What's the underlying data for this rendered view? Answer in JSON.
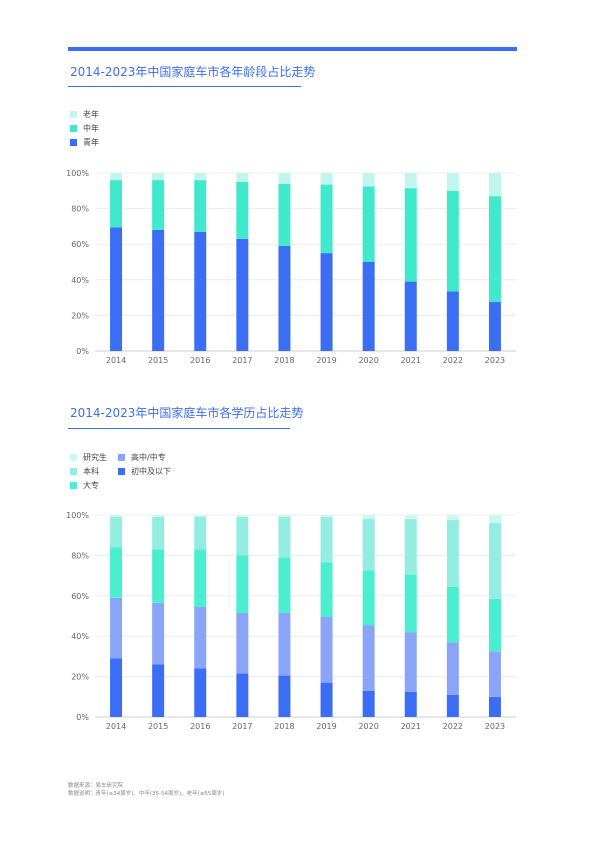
{
  "charts": [
    {
      "title": "2014-2023年中国家庭车市各年龄段占比走势",
      "chart_data": {
        "type": "bar",
        "stacked": true,
        "categories": [
          "2014",
          "2015",
          "2016",
          "2017",
          "2018",
          "2019",
          "2020",
          "2021",
          "2022",
          "2023"
        ],
        "ylim": [
          0,
          100
        ],
        "yticks": [
          "0%",
          "20%",
          "40%",
          "60%",
          "80%",
          "100%"
        ],
        "grid": true,
        "legend_position": "top-left",
        "series": [
          {
            "name": "青年",
            "color": "#3b6ef5",
            "values": [
              69.5,
              68,
              67,
              63,
              59,
              55,
              50,
              39,
              33.5,
              27.5
            ]
          },
          {
            "name": "中年",
            "color": "#40e8cc",
            "values": [
              26.5,
              28,
              29,
              32,
              35,
              38.5,
              42.5,
              52.5,
              56.5,
              59.5
            ]
          },
          {
            "name": "老年",
            "color": "#c2f5ee",
            "values": [
              4,
              4,
              4,
              5,
              6,
              6.5,
              7.5,
              8.5,
              10,
              13
            ]
          }
        ]
      }
    },
    {
      "title": "2014-2023年中国家庭车市各学历占比走势",
      "chart_data": {
        "type": "bar",
        "stacked": true,
        "categories": [
          "2014",
          "2015",
          "2016",
          "2017",
          "2018",
          "2019",
          "2020",
          "2021",
          "2022",
          "2023"
        ],
        "ylim": [
          0,
          100
        ],
        "yticks": [
          "0%",
          "20%",
          "40%",
          "60%",
          "80%",
          "100%"
        ],
        "grid": true,
        "legend_position": "top-left",
        "series": [
          {
            "name": "初中及以下",
            "color": "#3b6ef5",
            "values": [
              29,
              26,
              24,
              21.5,
              20.5,
              17,
              13,
              12.5,
              11,
              10
            ]
          },
          {
            "name": "高中/中专",
            "color": "#8aa5f8",
            "values": [
              30,
              30.5,
              30.5,
              30,
              31,
              32.5,
              32.5,
              29.5,
              26,
              22.5
            ]
          },
          {
            "name": "大专",
            "color": "#4ceed2",
            "values": [
              25,
              26.5,
              28.5,
              28.5,
              27.5,
              27,
              27,
              28.5,
              27.5,
              26
            ]
          },
          {
            "name": "本科",
            "color": "#93eee1",
            "values": [
              15,
              16,
              16,
              19,
              20,
              22.5,
              25.5,
              27.5,
              33,
              37.5
            ]
          },
          {
            "name": "研究生",
            "color": "#cdf8f2",
            "values": [
              1,
              1,
              1,
              1,
              1,
              1,
              2,
              2,
              2.5,
              4
            ]
          }
        ]
      }
    }
  ],
  "footnote": {
    "line1": "数据来源：易车研究院",
    "line2": "数据说明：青年(≤34周岁)、中年(35-54周岁)、老年(≥55周岁)"
  }
}
